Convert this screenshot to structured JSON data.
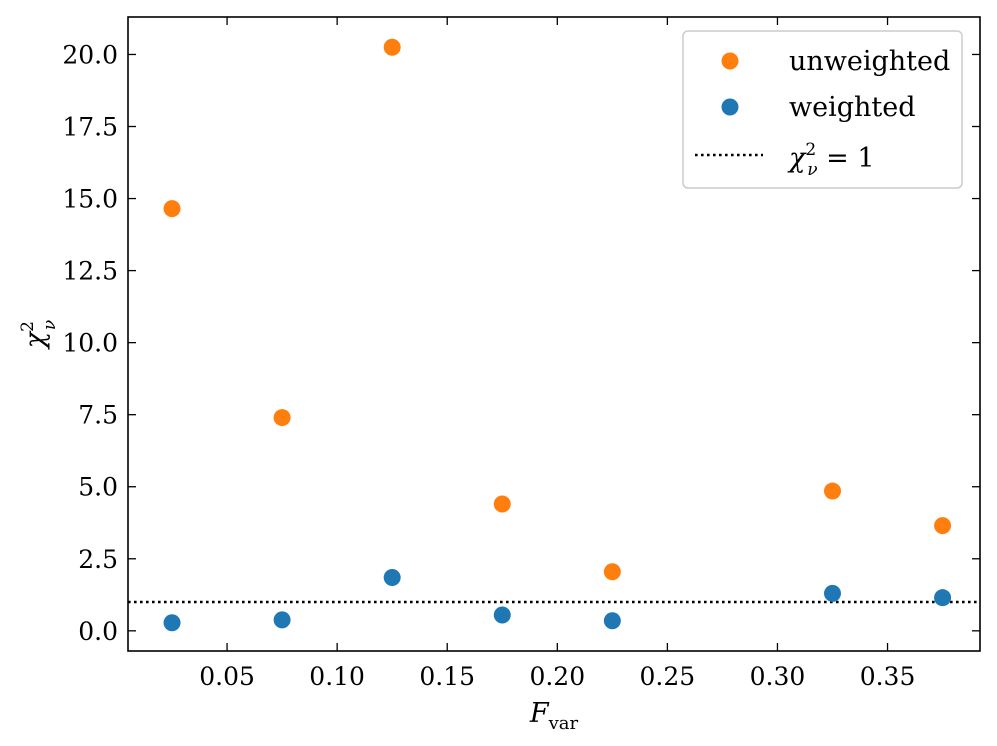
{
  "chart_data": {
    "type": "scatter",
    "xlabel": "F_var",
    "ylabel": "χ²_ν",
    "xlim": [
      0.005,
      0.392
    ],
    "ylim": [
      -0.7,
      21.3
    ],
    "xticks": [
      0.05,
      0.1,
      0.15,
      0.2,
      0.25,
      0.3,
      0.35
    ],
    "xtick_labels": [
      "0.05",
      "0.10",
      "0.15",
      "0.20",
      "0.25",
      "0.30",
      "0.35"
    ],
    "yticks": [
      0.0,
      2.5,
      5.0,
      7.5,
      10.0,
      12.5,
      15.0,
      17.5,
      20.0
    ],
    "ytick_labels": [
      "0.0",
      "2.5",
      "5.0",
      "7.5",
      "10.0",
      "12.5",
      "15.0",
      "17.5",
      "20.0"
    ],
    "legend_position": "top-right",
    "grid": false,
    "series": [
      {
        "name": "unweighted",
        "color": "#ff7f0e",
        "marker": "circle",
        "x": [
          0.025,
          0.075,
          0.125,
          0.175,
          0.225,
          0.325,
          0.375
        ],
        "y": [
          14.65,
          7.4,
          20.25,
          4.4,
          2.05,
          4.85,
          3.65
        ]
      },
      {
        "name": "weighted",
        "color": "#1f77b4",
        "marker": "circle",
        "x": [
          0.025,
          0.075,
          0.125,
          0.175,
          0.225,
          0.325,
          0.375
        ],
        "y": [
          0.28,
          0.38,
          1.85,
          0.55,
          0.35,
          1.3,
          1.15
        ]
      }
    ],
    "reference_line": {
      "label": "χ²_ν = 1",
      "y": 1.0,
      "style": "dotted",
      "color": "#000000"
    }
  }
}
